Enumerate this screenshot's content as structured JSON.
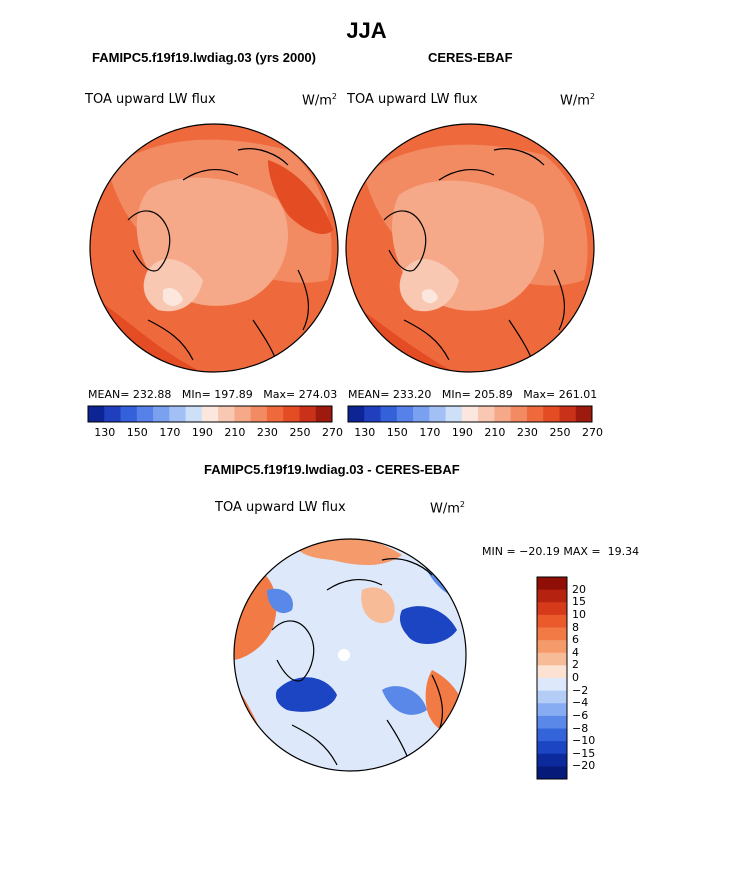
{
  "main_title": "JJA",
  "panels": [
    {
      "subtitle": "FAMIPC5.f19f19.lwdiag.03 (yrs 2000)",
      "variable": "TOA upward LW flux",
      "units_base": "W/m",
      "units_exp": "2",
      "stats": "MEAN= 232.88   MIn= 197.89   Max= 274.03"
    },
    {
      "subtitle": "CERES-EBAF",
      "variable": "TOA upward LW flux",
      "units_base": "W/m",
      "units_exp": "2",
      "stats": "MEAN= 233.20   MIn= 205.89   Max= 261.01"
    }
  ],
  "top_colorbar": {
    "ticks": [
      "130",
      "150",
      "170",
      "190",
      "210",
      "230",
      "250",
      "270"
    ],
    "colors": [
      "#0d2494",
      "#1f3fbf",
      "#3460d9",
      "#5681e9",
      "#7aa0f0",
      "#a3c0f5",
      "#cde0f8",
      "#fbe7de",
      "#f8c8b2",
      "#f5a988",
      "#f28a62",
      "#ee6a3d",
      "#e44c24",
      "#c93218",
      "#9c1a0e"
    ]
  },
  "diff_panel": {
    "subtitle": "FAMIPC5.f19f19.lwdiag.03 - CERES-EBAF",
    "variable": "TOA upward LW flux",
    "units_base": "W/m",
    "units_exp": "2",
    "minmax": "MIN = −20.19 MAX =  19.34"
  },
  "diff_colorbar": {
    "labels": [
      "20",
      "15",
      "10",
      "8",
      "6",
      "4",
      "2",
      "0",
      "−2",
      "−4",
      "−6",
      "−8",
      "−10",
      "−15",
      "−20"
    ],
    "colors": [
      "#8f0f07",
      "#b52210",
      "#d63a1b",
      "#ea5a2a",
      "#f27a45",
      "#f59a6a",
      "#f8bb98",
      "#fbe2d3",
      "#dde9fa",
      "#b3cdf7",
      "#87acf1",
      "#5a88e8",
      "#3364d9",
      "#1b45c2",
      "#0d2a9c",
      "#061a7a"
    ]
  },
  "colors": {
    "land_outline": "#000000",
    "warm_dark": "#e44c24",
    "warm_mid": "#f07c55",
    "warm_light": "#f6ad8e",
    "cool_light": "#cde0f8"
  }
}
